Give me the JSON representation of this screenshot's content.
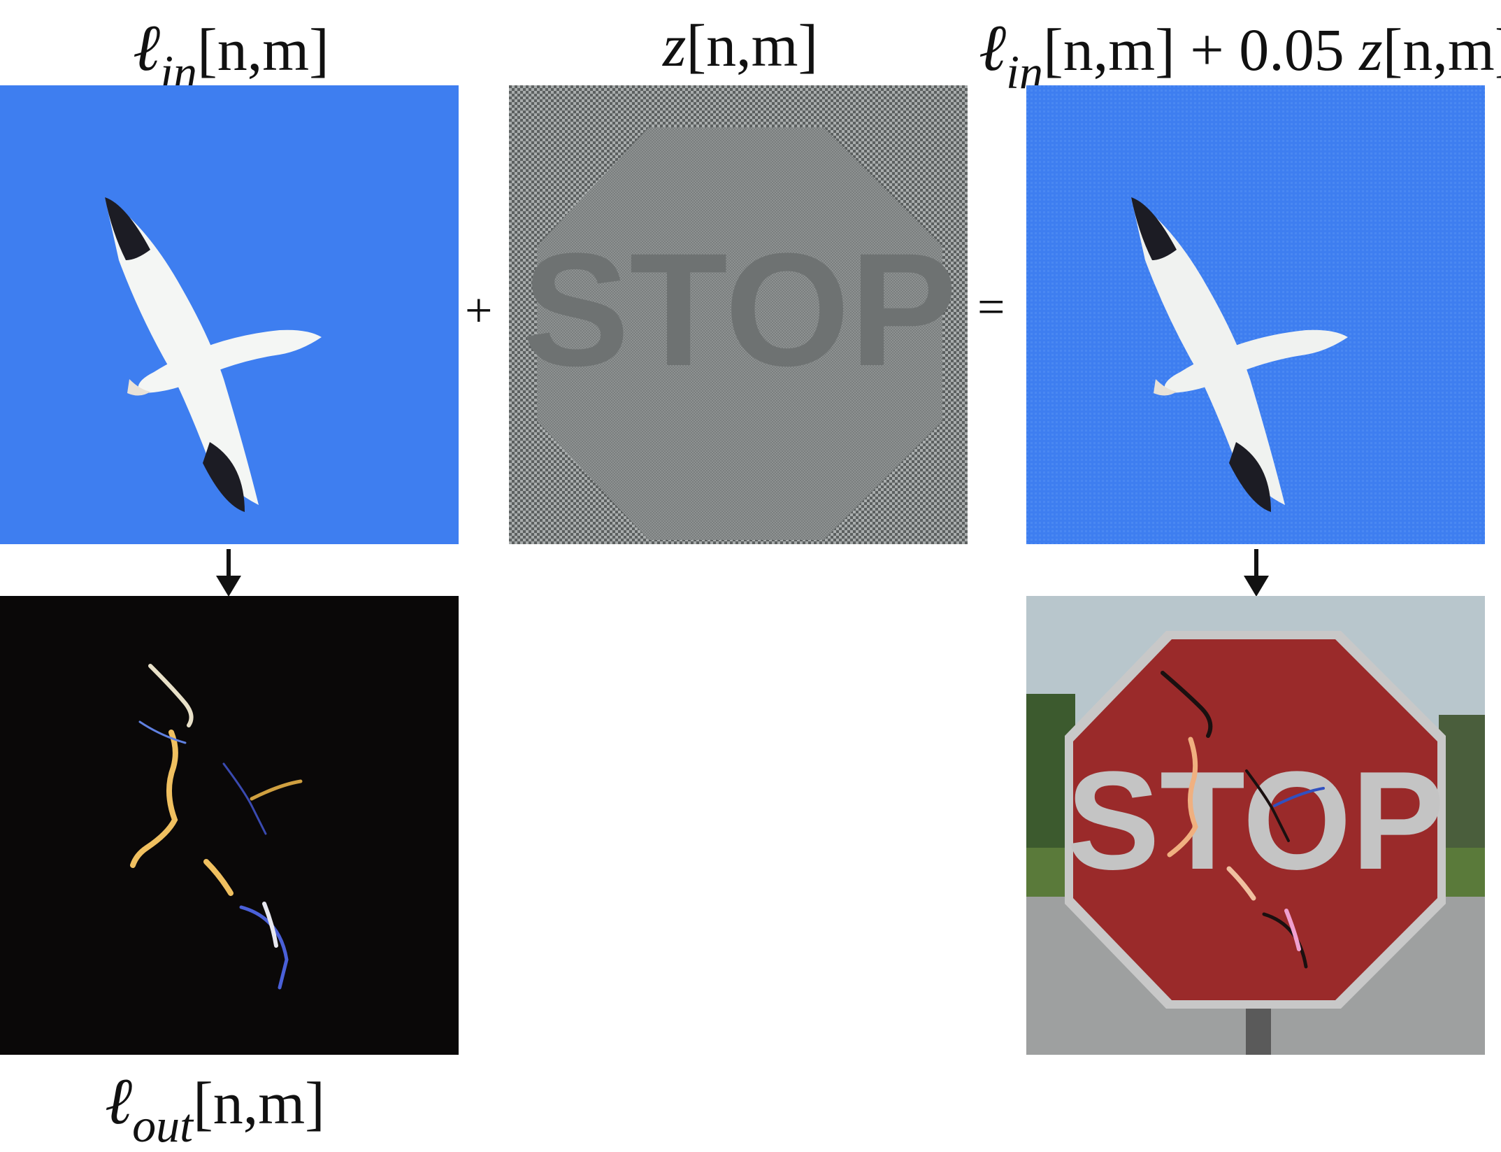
{
  "labels": {
    "input": {
      "ell": "ℓ",
      "sub": "in",
      "args": "[n,m]"
    },
    "noise": {
      "var": "z",
      "args": "[n,m]"
    },
    "sum": {
      "ell": "ℓ",
      "sub": "in",
      "args": "[n,m]",
      "plus": "+ 0.05",
      "var": "z",
      "args2": "[n,m]"
    },
    "output": {
      "ell": "ℓ",
      "sub": "out",
      "args": "[n,m]"
    }
  },
  "operators": {
    "plus": "+",
    "equals": "="
  },
  "sign_text": "STOP",
  "colors": {
    "sky": "#3e7ef0",
    "bird_white": "#f4f6f4",
    "bird_dark": "#1c1c24",
    "noise_gray": "#8c9090",
    "sign_red": "#9a2a2a",
    "background_dark": "#0a0808"
  }
}
